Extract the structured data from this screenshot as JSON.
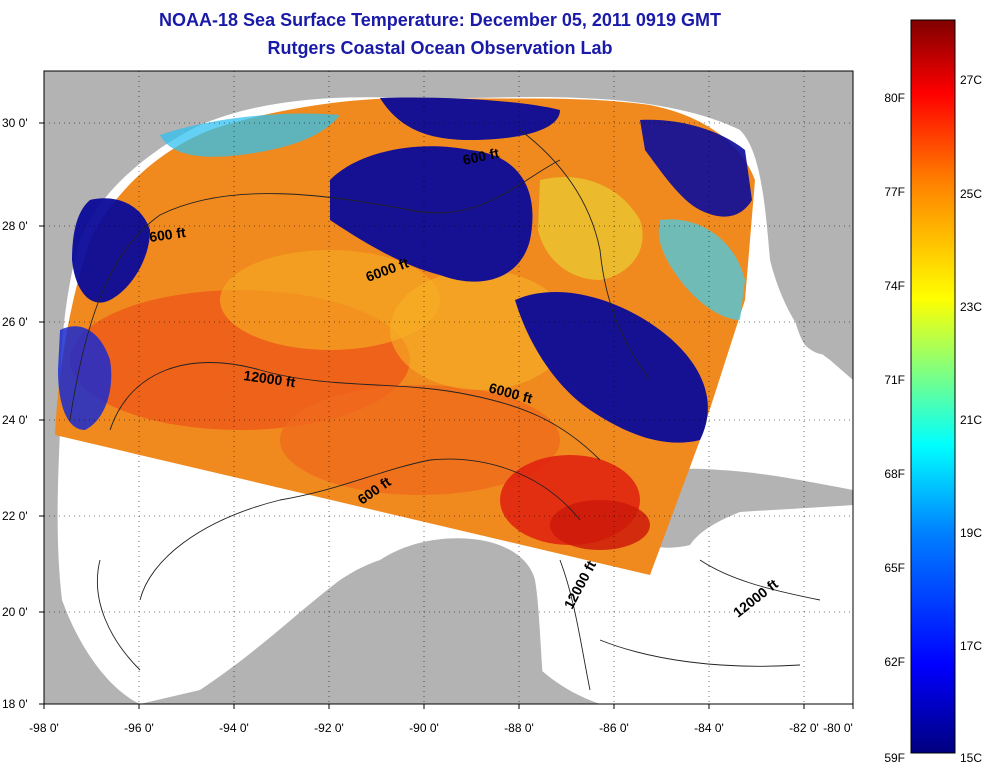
{
  "title": {
    "line1": "NOAA-18 Sea Surface Temperature:  December 05, 2011 0919 GMT",
    "line2": "Rutgers Coastal Ocean Observation Lab"
  },
  "map": {
    "x_ticks": [
      "-98 0'",
      "-96 0'",
      "-94 0'",
      "-92 0'",
      "-90 0'",
      "-88 0'",
      "-86 0'",
      "-84 0'",
      "-82 0'",
      "-80 0'"
    ],
    "y_ticks": [
      "30 0'",
      "28 0'",
      "26 0'",
      "24 0'",
      "22 0'",
      "20 0'",
      "18 0'"
    ],
    "land_color": "#b3b3b3",
    "nodata_color": "#ffffff",
    "contour_labels": [
      "600 ft",
      "6000 ft",
      "12000 ft",
      "600 ft",
      "6000 ft",
      "600 ft",
      "12000 ft",
      "12000 ft"
    ]
  },
  "colorbar": {
    "f_labels": [
      "80F",
      "77F",
      "74F",
      "71F",
      "68F",
      "65F",
      "62F",
      "59F"
    ],
    "c_labels": [
      "27C",
      "25C",
      "23C",
      "21C",
      "19C",
      "17C",
      "15C"
    ],
    "gradient_colors": [
      "#00007f",
      "#0000ff",
      "#0080ff",
      "#00ffff",
      "#80ff80",
      "#ffff00",
      "#ff8000",
      "#ff0000",
      "#7f0000"
    ]
  }
}
